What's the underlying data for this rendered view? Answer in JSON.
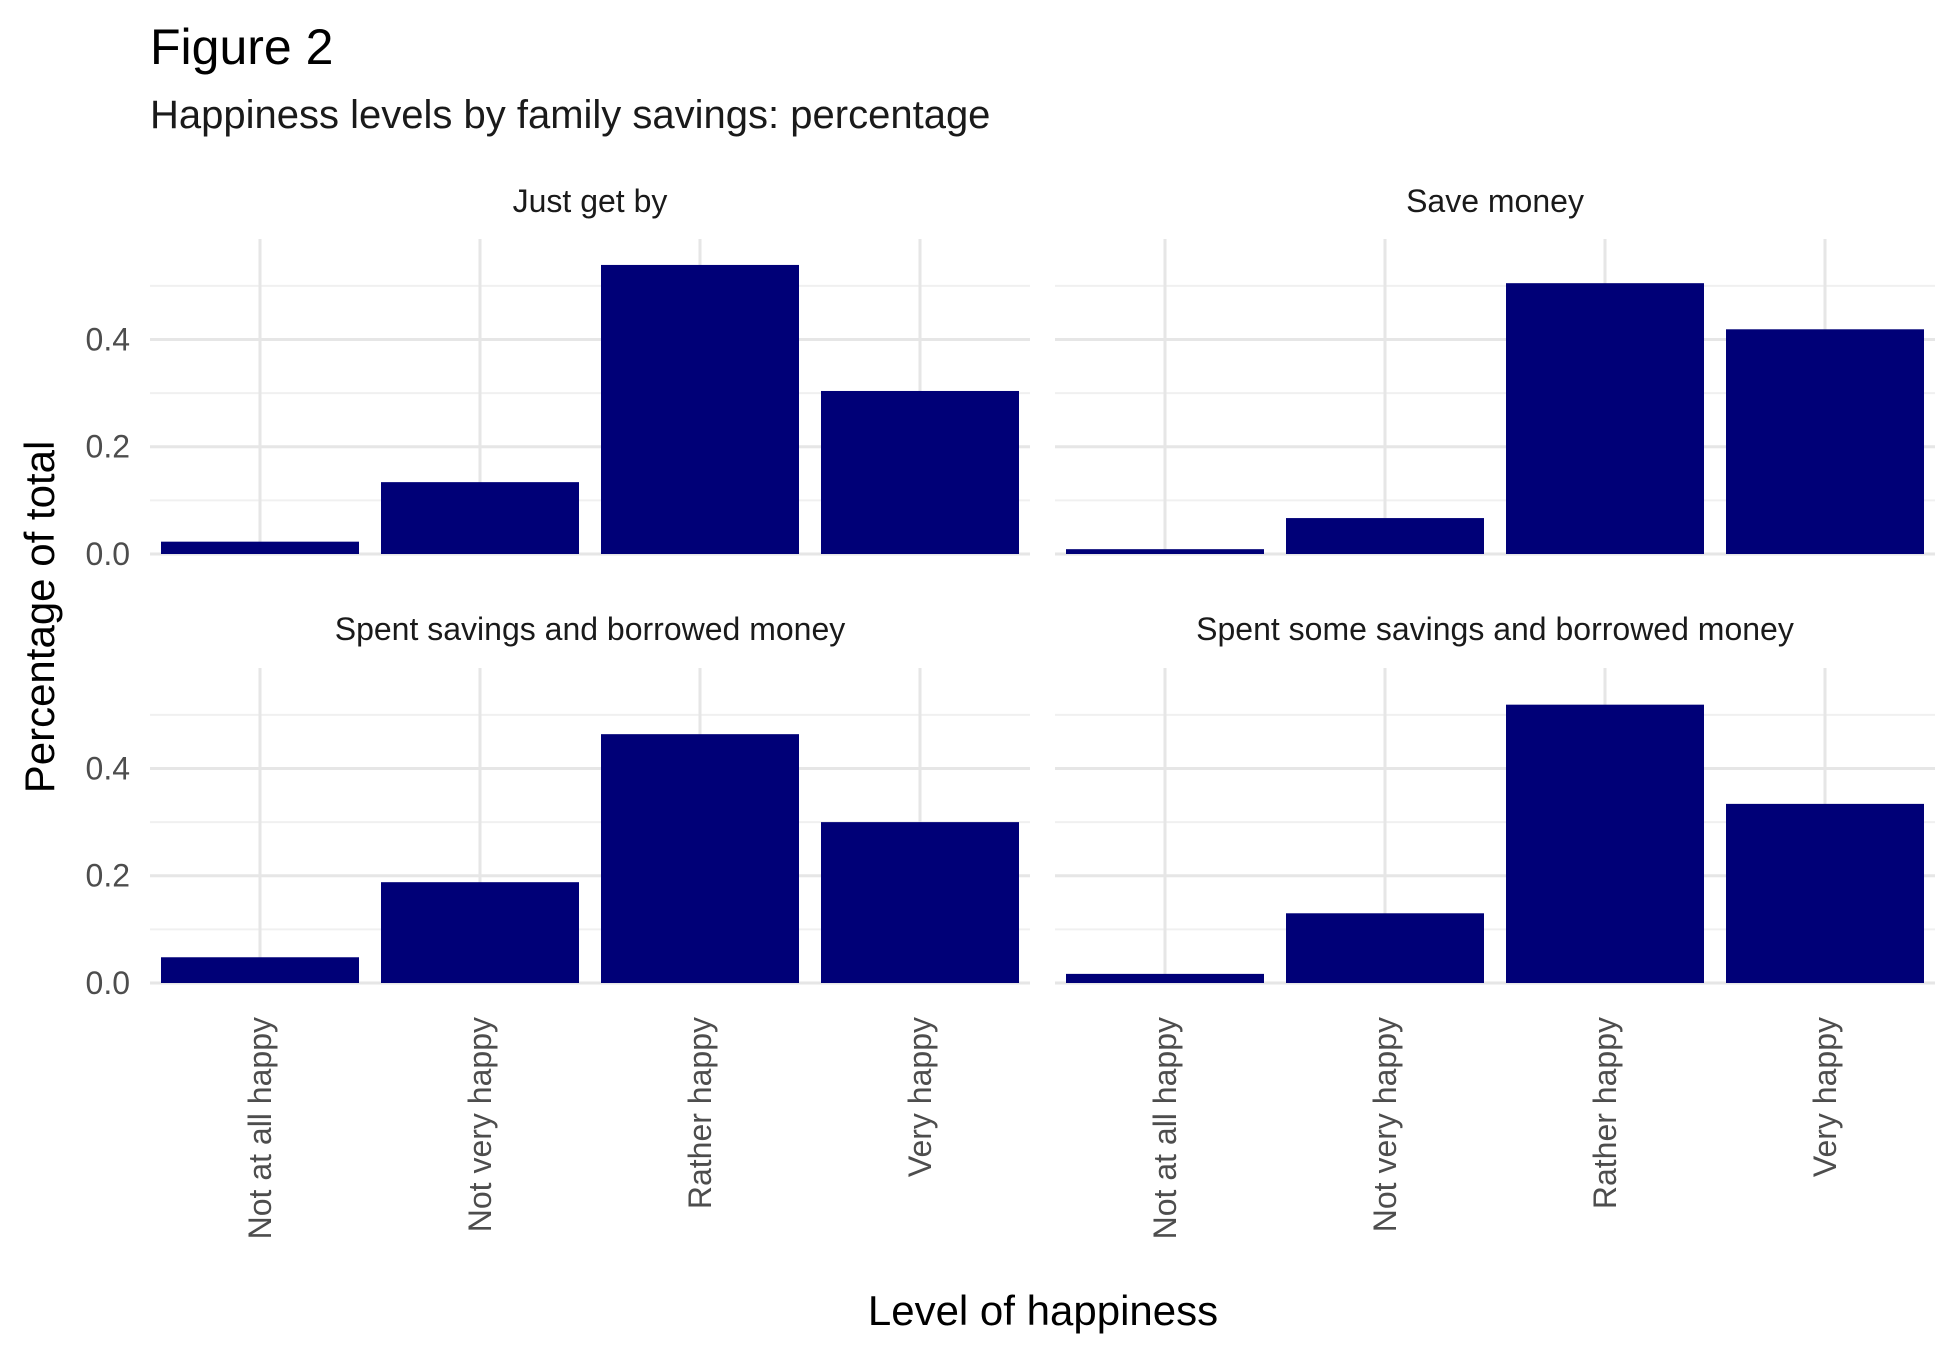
{
  "chart_data": {
    "type": "bar",
    "title": "Figure 2",
    "subtitle": "Happiness levels by family savings: percentage",
    "xlabel": "Level of happiness",
    "ylabel": "Percentage of total",
    "categories": [
      "Not at all happy",
      "Not very happy",
      "Rather happy",
      "Very happy"
    ],
    "yticks": [
      0.0,
      0.2,
      0.4
    ],
    "ytick_labels": [
      "0.0",
      "0.2",
      "0.4"
    ],
    "ylim": [
      0,
      0.565
    ],
    "grid": true,
    "bar_color": "#000077",
    "facets": [
      {
        "label": "Just get by",
        "values": [
          0.023,
          0.134,
          0.539,
          0.304
        ]
      },
      {
        "label": "Save money",
        "values": [
          0.009,
          0.067,
          0.505,
          0.419
        ]
      },
      {
        "label": "Spent savings and borrowed money",
        "values": [
          0.048,
          0.188,
          0.464,
          0.3
        ]
      },
      {
        "label": "Spent some savings and borrowed money",
        "values": [
          0.017,
          0.13,
          0.519,
          0.334
        ]
      }
    ]
  }
}
